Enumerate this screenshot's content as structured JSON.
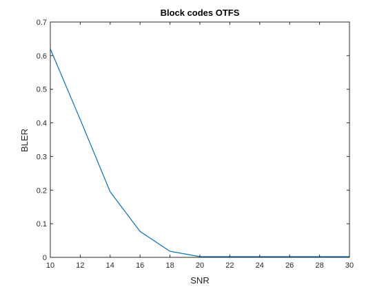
{
  "chart_data": {
    "type": "line",
    "title": "Block codes OTFS",
    "xlabel": "SNR",
    "ylabel": "BLER",
    "xlim": [
      10,
      30
    ],
    "ylim": [
      0,
      0.7
    ],
    "xticks": [
      10,
      12,
      14,
      16,
      18,
      20,
      22,
      24,
      26,
      28,
      30
    ],
    "yticks": [
      0,
      0.1,
      0.2,
      0.3,
      0.4,
      0.5,
      0.6,
      0.7
    ],
    "grid": false,
    "series": [
      {
        "color": "#0072BD",
        "x": [
          10,
          12,
          14,
          16,
          18,
          20,
          22,
          24,
          26,
          28,
          30
        ],
        "y": [
          0.62,
          0.41,
          0.195,
          0.077,
          0.018,
          0.002,
          0.002,
          0.002,
          0.002,
          0.002,
          0.002
        ]
      }
    ]
  }
}
